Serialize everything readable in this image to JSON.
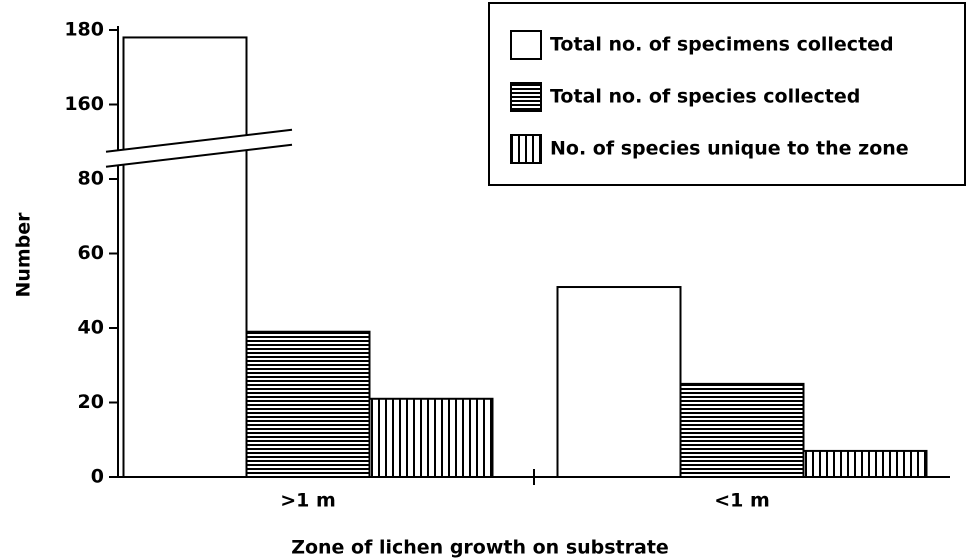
{
  "chart_data": {
    "type": "bar",
    "x_label": "Zone of lichen growth on substrate",
    "y_label": "Number",
    "categories": [
      ">1 m",
      "<1 m"
    ],
    "series": [
      {
        "name": "Total no. of specimens collected",
        "color": "#ffffff",
        "pattern": "none",
        "values": [
          178,
          51
        ]
      },
      {
        "name": "Total no. of species collected",
        "color": "#ffffff",
        "pattern": "horizontal",
        "values": [
          39,
          25
        ]
      },
      {
        "name": "No. of species unique to the zone",
        "color": "#ffffff",
        "pattern": "vertical",
        "values": [
          21,
          7
        ]
      }
    ],
    "ylim": [
      0,
      180
    ],
    "axis_break": [
      90,
      150
    ],
    "yticks": [
      0,
      20,
      40,
      60,
      80,
      160,
      180
    ],
    "legend": "upper right",
    "grid": false
  }
}
